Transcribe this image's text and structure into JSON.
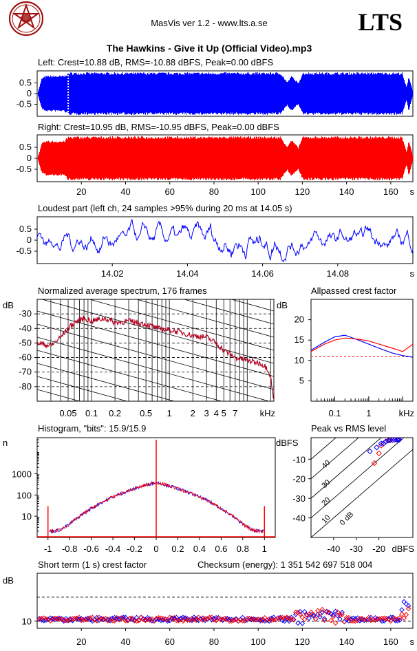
{
  "header": {
    "app_title": "MasVis ver 1.2 - www.lts.a.se",
    "brand": "LTS",
    "file_title": "The Hawkins - Give it Up (Official Video).mp3"
  },
  "colors": {
    "left": "#0000ff",
    "right": "#ff0000",
    "spectrum": "#b00020",
    "grid": "#000000",
    "logo": "#a01010"
  },
  "chart_data": [
    {
      "id": "left-waveform",
      "type": "area",
      "title": "Left: Crest=10.88 dB, RMS=-10.88 dBFS, Peak=0.00 dBFS",
      "yticks": [
        "0.5",
        "0",
        "-0.5"
      ],
      "ylim": [
        -1,
        1
      ],
      "x": [
        0,
        2,
        4,
        6,
        8,
        10,
        12,
        14,
        20,
        30,
        40,
        60,
        80,
        100,
        110,
        113,
        115,
        118,
        120,
        125,
        130,
        140,
        150,
        160,
        165,
        167,
        168,
        170
      ],
      "envelope": [
        0.0,
        0.75,
        0.85,
        0.85,
        0.85,
        0.85,
        0.85,
        1.0,
        1.0,
        1.0,
        1.0,
        1.0,
        1.0,
        1.0,
        1.0,
        0.55,
        0.85,
        0.5,
        1.0,
        1.0,
        1.0,
        1.0,
        1.0,
        1.0,
        1.0,
        0.3,
        0.85,
        0.05
      ],
      "marker_time": 14.05
    },
    {
      "id": "right-waveform",
      "type": "area",
      "title": "Right: Crest=10.95 dB, RMS=-10.95 dBFS, Peak=0.00 dBFS",
      "yticks": [
        "0.5",
        "0",
        "-0.5"
      ],
      "ylim": [
        -1,
        1
      ],
      "xticks": [
        "20",
        "40",
        "60",
        "80",
        "100",
        "120",
        "140",
        "160"
      ],
      "xunit": "s",
      "x": [
        0,
        2,
        4,
        6,
        8,
        10,
        12,
        14,
        20,
        30,
        40,
        60,
        80,
        100,
        110,
        113,
        115,
        118,
        120,
        125,
        130,
        140,
        150,
        160,
        165,
        167,
        168,
        170
      ],
      "envelope": [
        0.0,
        0.7,
        0.8,
        0.8,
        0.8,
        0.8,
        0.8,
        1.0,
        1.0,
        1.0,
        1.0,
        1.0,
        1.0,
        1.0,
        1.0,
        0.55,
        0.85,
        0.5,
        1.0,
        1.0,
        1.0,
        1.0,
        1.0,
        1.0,
        1.0,
        0.3,
        0.85,
        0.05
      ]
    },
    {
      "id": "loudest-part",
      "type": "line",
      "title": "Loudest part (left  ch, 24 samples >95% during 20 ms at 14.05 s)",
      "xlim": [
        14.0,
        14.1
      ],
      "xticks": [
        "14.02",
        "14.04",
        "14.06",
        "14.08"
      ],
      "xunit": "s",
      "yticks": [
        "0.5",
        "0",
        "-0.5"
      ],
      "ylim": [
        -1,
        1
      ],
      "peak_region": [
        14.045,
        14.065
      ]
    },
    {
      "id": "avg-spectrum",
      "type": "line",
      "title": "Normalized average spectrum, 176 frames",
      "ylabel": "dB",
      "yticks": [
        "-30",
        "-40",
        "-50",
        "-60",
        "-70",
        "-80"
      ],
      "ylim": [
        -90,
        -20
      ],
      "xticks": [
        "0.05",
        "0.1",
        "0.2",
        "0.5",
        "1",
        "2",
        "3",
        "4",
        "5",
        "7"
      ],
      "xunit": "kHz",
      "xlim": [
        0.02,
        22
      ],
      "freq_khz": [
        0.02,
        0.03,
        0.04,
        0.05,
        0.06,
        0.08,
        0.1,
        0.15,
        0.2,
        0.3,
        0.5,
        0.7,
        1,
        1.5,
        2,
        3,
        4,
        5,
        7,
        10,
        15,
        18,
        20,
        22
      ],
      "level_db": [
        -50,
        -52,
        -46,
        -40,
        -36,
        -33,
        -35,
        -33,
        -36,
        -35,
        -37,
        -40,
        -41,
        -43,
        -45,
        -46,
        -50,
        -55,
        -60,
        -62,
        -64,
        -67,
        -73,
        -90
      ]
    },
    {
      "id": "crest-factor",
      "type": "line",
      "title": "Allpassed crest factor",
      "ylabel": "dB",
      "yticks": [
        "20",
        "15",
        "10",
        "5"
      ],
      "ylim": [
        0,
        25
      ],
      "xticks": [
        "0.1",
        "1"
      ],
      "xunit": "kHz",
      "reference": 10.9,
      "series": [
        {
          "x": [
            0.02,
            0.05,
            0.1,
            0.2,
            0.5,
            1,
            2,
            5,
            10,
            20
          ],
          "values": [
            12.5,
            14.5,
            15.8,
            16.2,
            15.0,
            14.0,
            13.0,
            11.8,
            11.2,
            10.8
          ]
        },
        {
          "x": [
            0.02,
            0.05,
            0.1,
            0.2,
            0.5,
            1,
            2,
            5,
            10,
            20
          ],
          "values": [
            12.2,
            14.0,
            15.0,
            15.5,
            15.2,
            14.8,
            14.0,
            13.0,
            12.2,
            14.0
          ]
        }
      ]
    },
    {
      "id": "histogram",
      "type": "line",
      "title": "Histogram, \"bits\": 15.9/15.9",
      "ylabel": "n",
      "yticks": [
        "1000",
        "100",
        "10"
      ],
      "xticks": [
        "-1",
        "-0.8",
        "-0.6",
        "-0.4",
        "-0.2",
        "0",
        "0.2",
        "0.4",
        "0.6",
        "0.8",
        "1"
      ],
      "xlim": [
        -1,
        1
      ],
      "center_count": 400,
      "edge_count": 2,
      "spike_at": [
        -1,
        0,
        1
      ]
    },
    {
      "id": "peak-vs-rms",
      "type": "scatter",
      "title": "Peak vs RMS level",
      "ylabel": "dBFS",
      "yticks": [
        "-10",
        "-20",
        "-30",
        "-40"
      ],
      "xticks": [
        "-40",
        "-30",
        "-20"
      ],
      "xlabel": "dBFS",
      "diagonal_labels": [
        "40",
        "30",
        "20",
        "10",
        "0 dB"
      ],
      "series": [
        {
          "x": [
            -22,
            -20,
            -19,
            -18,
            -17,
            -16,
            -15.5,
            -15,
            -14,
            -13,
            -12,
            -11.5,
            -11
          ],
          "values": [
            -12,
            -7,
            -3,
            -2,
            -1,
            -0.5,
            -0.3,
            -0.2,
            -0.1,
            0,
            0,
            0,
            0
          ]
        },
        {
          "x": [
            -24,
            -21,
            -19,
            -18,
            -17,
            -16,
            -15,
            -14,
            -13,
            -12,
            -11.5,
            -11
          ],
          "values": [
            -6,
            -4,
            -2,
            -2,
            -1,
            -0.5,
            -0.3,
            -0.2,
            -0.1,
            0,
            0,
            0
          ]
        }
      ]
    },
    {
      "id": "short-term-crest",
      "type": "scatter",
      "title": "Short term (1 s) crest factor",
      "checksum": "Checksum (energy):  1 351 542 697 518 004",
      "ylabel": "dB",
      "yticks": [
        "10"
      ],
      "ylim": [
        5,
        25
      ],
      "xticks": [
        "20",
        "40",
        "60",
        "80",
        "100",
        "120",
        "140",
        "160"
      ],
      "xunit": "s",
      "xlim": [
        0,
        170
      ],
      "dashed_levels": [
        10,
        20
      ]
    }
  ]
}
